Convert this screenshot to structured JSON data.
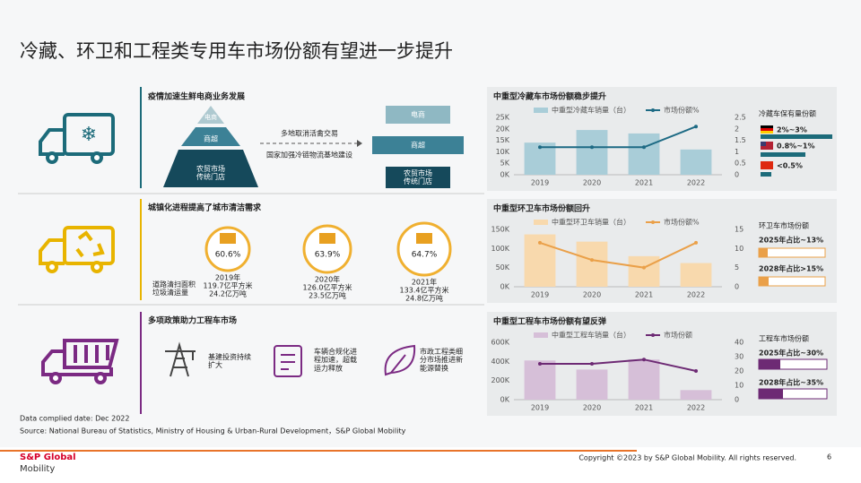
{
  "title": "冷藏、环卫和工程类专用车市场份额有望进一步提升",
  "rows": [
    {
      "heading": "疫情加速生鲜电商业务发展",
      "pyramid": [
        "电商",
        "商超",
        "农贸市场\n传统门店"
      ],
      "arrow_texts": [
        "多地取消活禽交易",
        "国家加强冷链物流基地建设"
      ],
      "stack": [
        "电商",
        "商超",
        "农贸市场\n传统门店"
      ]
    },
    {
      "heading": "城镇化进程提高了城市清洁需求",
      "legend_label": "道路清扫面积\n垃圾清运量",
      "circles": [
        {
          "pct": "60.6%",
          "year": "2019年",
          "area": "119.7亿平方米",
          "waste": "24.2亿万吨"
        },
        {
          "pct": "63.9%",
          "year": "2020年",
          "area": "126.0亿平方米",
          "waste": "23.5亿万吨"
        },
        {
          "pct": "64.7%",
          "year": "2021年",
          "area": "133.4亿平方米",
          "waste": "24.8亿万吨"
        }
      ]
    },
    {
      "heading": "多项政策助力工程车市场",
      "items": [
        "基建投资持续\n扩大",
        "车辆合规化进\n程加速，超载\n运力释放",
        "市政工程类细\n分市场推进新\n能源替换"
      ]
    }
  ],
  "chart_data": [
    {
      "type": "bar-line",
      "title": "中重型冷藏车市场份额稳步提升",
      "categories": [
        "2019",
        "2020",
        "2021",
        "2022"
      ],
      "series": [
        {
          "name": "中重型冷藏车销量（台）",
          "color": "#a9cdd8",
          "values": [
            14000,
            19500,
            18000,
            11000
          ]
        },
        {
          "name": "市场份额%",
          "color": "#1d6a84",
          "values": [
            1.2,
            1.2,
            1.2,
            2.1
          ],
          "axis": "y2"
        }
      ],
      "ylim": [
        0,
        25000
      ],
      "yticks": [
        {
          "value": 0,
          "label": "0K"
        },
        {
          "value": 5000,
          "label": "5K"
        },
        {
          "value": 10000,
          "label": "10K"
        },
        {
          "value": 15000,
          "label": "15K"
        },
        {
          "value": 20000,
          "label": "20K"
        },
        {
          "value": 25000,
          "label": "25K"
        }
      ],
      "y2lim": [
        0,
        2.5
      ],
      "y2ticks": [
        0,
        0.5,
        1,
        1.5,
        2,
        2.5
      ],
      "grid": false,
      "share_title": "冷藏车保有量份额",
      "share_items": [
        "2%~3%",
        "0.8%~1%",
        "<0.5%"
      ]
    },
    {
      "type": "bar-line",
      "title": "中重型环卫车市场份额回升",
      "categories": [
        "2019",
        "2020",
        "2021",
        "2022"
      ],
      "series": [
        {
          "name": "中重型环卫车销量（台）",
          "color": "#f8d9ad",
          "values": [
            137000,
            118000,
            80000,
            62000
          ]
        },
        {
          "name": "市场份额%",
          "color": "#eaa049",
          "values": [
            11.5,
            7,
            5,
            11.5
          ],
          "axis": "y2"
        }
      ],
      "ylim": [
        0,
        150000
      ],
      "yticks": [
        {
          "value": 0,
          "label": "0K"
        },
        {
          "value": 50000,
          "label": "50K"
        },
        {
          "value": 100000,
          "label": "100K"
        },
        {
          "value": 150000,
          "label": "150K"
        }
      ],
      "y2lim": [
        0,
        15
      ],
      "y2ticks": [
        0,
        5,
        10,
        15
      ],
      "grid": false,
      "share_title": "环卫车市场份额",
      "share_items": [
        "2025年占比~13%",
        "2028年占比>15%"
      ]
    },
    {
      "type": "bar-line",
      "title": "中重型工程车市场份额有望反弹",
      "categories": [
        "2019",
        "2020",
        "2021",
        "2022"
      ],
      "series": [
        {
          "name": "中重型工程车销量（台）",
          "color": "#d6bfd8",
          "values": [
            410000,
            315000,
            420000,
            100000
          ]
        },
        {
          "name": "市场份额",
          "color": "#6d2a74",
          "values": [
            25,
            25,
            28,
            20
          ],
          "axis": "y2"
        }
      ],
      "ylim": [
        0,
        600000
      ],
      "yticks": [
        {
          "value": 0,
          "label": "0K"
        },
        {
          "value": 200000,
          "label": "200K"
        },
        {
          "value": 400000,
          "label": "400K"
        },
        {
          "value": 600000,
          "label": "600K"
        }
      ],
      "y2lim": [
        0,
        40
      ],
      "y2ticks": [
        0,
        10,
        20,
        30,
        40
      ],
      "grid": false,
      "share_title": "工程车市场份额",
      "share_items": [
        "2025年占比~30%",
        "2028年占比~35%"
      ]
    }
  ],
  "footer": {
    "date": "Data complied date: Dec 2022",
    "source": "Source: National Bureau of Statistics, Ministry of Housing & Urban-Rural Development，S&P Global Mobility",
    "brand": [
      "S&P Global",
      "Mobility"
    ],
    "copyright": "Copyright ©2023 by S&P Global Mobility. All rights reserved.",
    "page": "6"
  }
}
